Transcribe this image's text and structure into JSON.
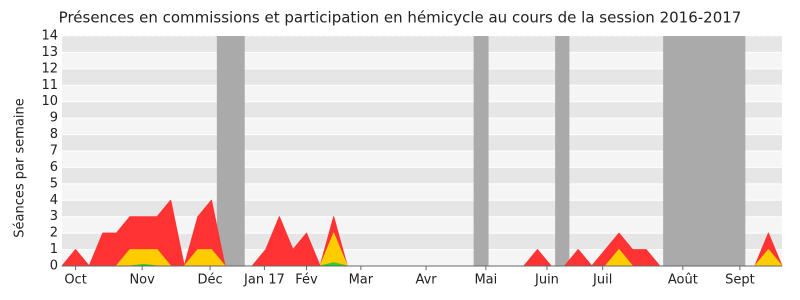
{
  "chart_data": {
    "type": "area",
    "title": "Présences en commissions et participation en hémicycle au cours de la session 2016-2017",
    "y_label": "Séances par semaine",
    "x": [
      0,
      1,
      2,
      3,
      4,
      5,
      6,
      7,
      8,
      9,
      10,
      11,
      12,
      13,
      14,
      15,
      16,
      17,
      18,
      19,
      20,
      21,
      22,
      23,
      24,
      25,
      26,
      27,
      28,
      29,
      30,
      31,
      32,
      33,
      34,
      35,
      36,
      37,
      38,
      39,
      40,
      41,
      42,
      43,
      44,
      45,
      46,
      47,
      48,
      49,
      50,
      51,
      52,
      53
    ],
    "xlim": [
      0,
      53
    ],
    "xticks": [
      {
        "value": 1,
        "label": "Oct"
      },
      {
        "value": 5.9,
        "label": "Nov"
      },
      {
        "value": 10.9,
        "label": "Déc"
      },
      {
        "value": 14.9,
        "label": "Jan 17"
      },
      {
        "value": 18,
        "label": "Fév"
      },
      {
        "value": 22,
        "label": "Mar"
      },
      {
        "value": 26.8,
        "label": "Avr"
      },
      {
        "value": 31.2,
        "label": "Mai"
      },
      {
        "value": 35.7,
        "label": "Juin"
      },
      {
        "value": 39.8,
        "label": "Juil"
      },
      {
        "value": 45.7,
        "label": "Août"
      },
      {
        "value": 49.9,
        "label": "Sept"
      }
    ],
    "ylim": [
      0,
      14
    ],
    "yticks": [
      0,
      1,
      2,
      3,
      4,
      5,
      6,
      7,
      8,
      9,
      10,
      11,
      12,
      13,
      14
    ],
    "shaded_ranges": [
      [
        11.4,
        13.45
      ],
      [
        30.3,
        31.4
      ],
      [
        36.3,
        37.35
      ],
      [
        44.25,
        50.3
      ]
    ],
    "shade_color": "#aaaaaa",
    "series": [
      {
        "color": "#ff3333",
        "values": [
          0,
          1,
          0,
          2,
          2,
          3,
          3,
          3,
          4,
          0,
          3,
          4,
          0,
          0,
          0,
          1,
          3,
          1,
          2,
          0,
          3,
          0,
          0,
          0,
          0,
          0,
          0,
          0,
          0,
          0,
          0,
          0,
          0,
          0,
          0,
          1,
          0,
          0,
          1,
          0,
          1,
          2,
          1,
          1,
          0,
          0,
          0,
          0,
          0,
          0,
          0,
          0,
          2,
          0
        ]
      },
      {
        "color": "#ffcc00",
        "values": [
          0,
          0,
          0,
          0,
          0,
          1,
          1,
          1,
          0,
          0,
          1,
          1,
          0,
          0,
          0,
          0,
          0,
          0,
          0,
          0,
          2,
          0,
          0,
          0,
          0,
          0,
          0,
          0,
          0,
          0,
          0,
          0,
          0,
          0,
          0,
          0,
          0,
          0,
          0,
          0,
          0,
          1,
          0,
          0,
          0,
          0,
          0,
          0,
          0,
          0,
          0,
          0,
          1,
          0
        ]
      },
      {
        "color": "#33cc33",
        "values": [
          0,
          0,
          0,
          0,
          0,
          0,
          0.1,
          0,
          0,
          0,
          0,
          0,
          0,
          0,
          0,
          0,
          0,
          0,
          0,
          0,
          0.2,
          0,
          0,
          0,
          0,
          0,
          0,
          0,
          0,
          0,
          0,
          0,
          0,
          0,
          0,
          0,
          0,
          0,
          0,
          0,
          0,
          0,
          0,
          0,
          0,
          0,
          0,
          0,
          0,
          0,
          0,
          0,
          0,
          0
        ]
      }
    ]
  }
}
